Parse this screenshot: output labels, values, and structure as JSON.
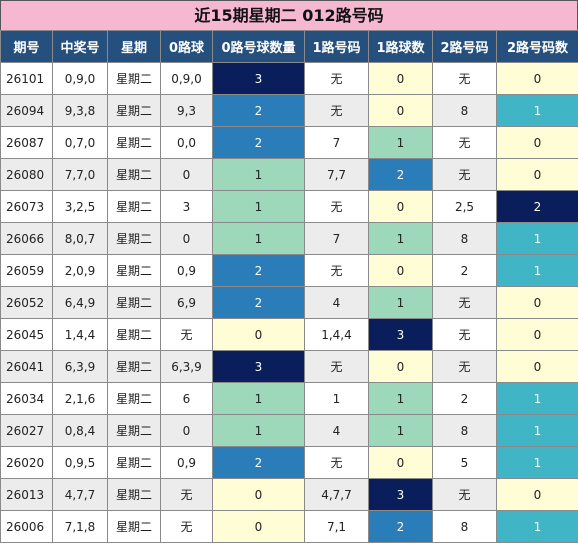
{
  "title": "近15期星期二 012路号码",
  "headers": [
    "期号",
    "中奖号",
    "星期",
    "0路球",
    "0路号球数量",
    "1路号码",
    "1路球数",
    "2路号码",
    "2路号码数"
  ],
  "rows": [
    {
      "issue": "26101",
      "number": "0,9,0",
      "weekday": "星期二",
      "r0": "0,9,0",
      "r0_count": "3",
      "r1": "无",
      "r1_count": "0",
      "r2": "无",
      "r2_count": "0"
    },
    {
      "issue": "26094",
      "number": "9,3,8",
      "weekday": "星期二",
      "r0": "9,3",
      "r0_count": "2",
      "r1": "无",
      "r1_count": "0",
      "r2": "8",
      "r2_count": "1"
    },
    {
      "issue": "26087",
      "number": "0,7,0",
      "weekday": "星期二",
      "r0": "0,0",
      "r0_count": "2",
      "r1": "7",
      "r1_count": "1",
      "r2": "无",
      "r2_count": "0"
    },
    {
      "issue": "26080",
      "number": "7,7,0",
      "weekday": "星期二",
      "r0": "0",
      "r0_count": "1",
      "r1": "7,7",
      "r1_count": "2",
      "r2": "无",
      "r2_count": "0"
    },
    {
      "issue": "26073",
      "number": "3,2,5",
      "weekday": "星期二",
      "r0": "3",
      "r0_count": "1",
      "r1": "无",
      "r1_count": "0",
      "r2": "2,5",
      "r2_count": "2"
    },
    {
      "issue": "26066",
      "number": "8,0,7",
      "weekday": "星期二",
      "r0": "0",
      "r0_count": "1",
      "r1": "7",
      "r1_count": "1",
      "r2": "8",
      "r2_count": "1"
    },
    {
      "issue": "26059",
      "number": "2,0,9",
      "weekday": "星期二",
      "r0": "0,9",
      "r0_count": "2",
      "r1": "无",
      "r1_count": "0",
      "r2": "2",
      "r2_count": "1"
    },
    {
      "issue": "26052",
      "number": "6,4,9",
      "weekday": "星期二",
      "r0": "6,9",
      "r0_count": "2",
      "r1": "4",
      "r1_count": "1",
      "r2": "无",
      "r2_count": "0"
    },
    {
      "issue": "26045",
      "number": "1,4,4",
      "weekday": "星期二",
      "r0": "无",
      "r0_count": "0",
      "r1": "1,4,4",
      "r1_count": "3",
      "r2": "无",
      "r2_count": "0"
    },
    {
      "issue": "26041",
      "number": "6,3,9",
      "weekday": "星期二",
      "r0": "6,3,9",
      "r0_count": "3",
      "r1": "无",
      "r1_count": "0",
      "r2": "无",
      "r2_count": "0"
    },
    {
      "issue": "26034",
      "number": "2,1,6",
      "weekday": "星期二",
      "r0": "6",
      "r0_count": "1",
      "r1": "1",
      "r1_count": "1",
      "r2": "2",
      "r2_count": "1"
    },
    {
      "issue": "26027",
      "number": "0,8,4",
      "weekday": "星期二",
      "r0": "0",
      "r0_count": "1",
      "r1": "4",
      "r1_count": "1",
      "r2": "8",
      "r2_count": "1"
    },
    {
      "issue": "26020",
      "number": "0,9,5",
      "weekday": "星期二",
      "r0": "0,9",
      "r0_count": "2",
      "r1": "无",
      "r1_count": "0",
      "r2": "5",
      "r2_count": "1"
    },
    {
      "issue": "26013",
      "number": "4,7,7",
      "weekday": "星期二",
      "r0": "无",
      "r0_count": "0",
      "r1": "4,7,7",
      "r1_count": "3",
      "r2": "无",
      "r2_count": "0"
    },
    {
      "issue": "26006",
      "number": "7,1,8",
      "weekday": "星期二",
      "r0": "无",
      "r0_count": "0",
      "r1": "7,1",
      "r1_count": "2",
      "r2": "8",
      "r2_count": "1"
    }
  ],
  "colors": {
    "title_bg": "#f5b8d0",
    "header_bg": "#25507d",
    "count_3": "#0b1e5c",
    "count_2": "#2a7db9",
    "count_1": "#9ed8bb",
    "count_0": "#fffdd5",
    "r2_count_1": "#3fb5c6",
    "r2_count_2": "#0b1e5c"
  }
}
